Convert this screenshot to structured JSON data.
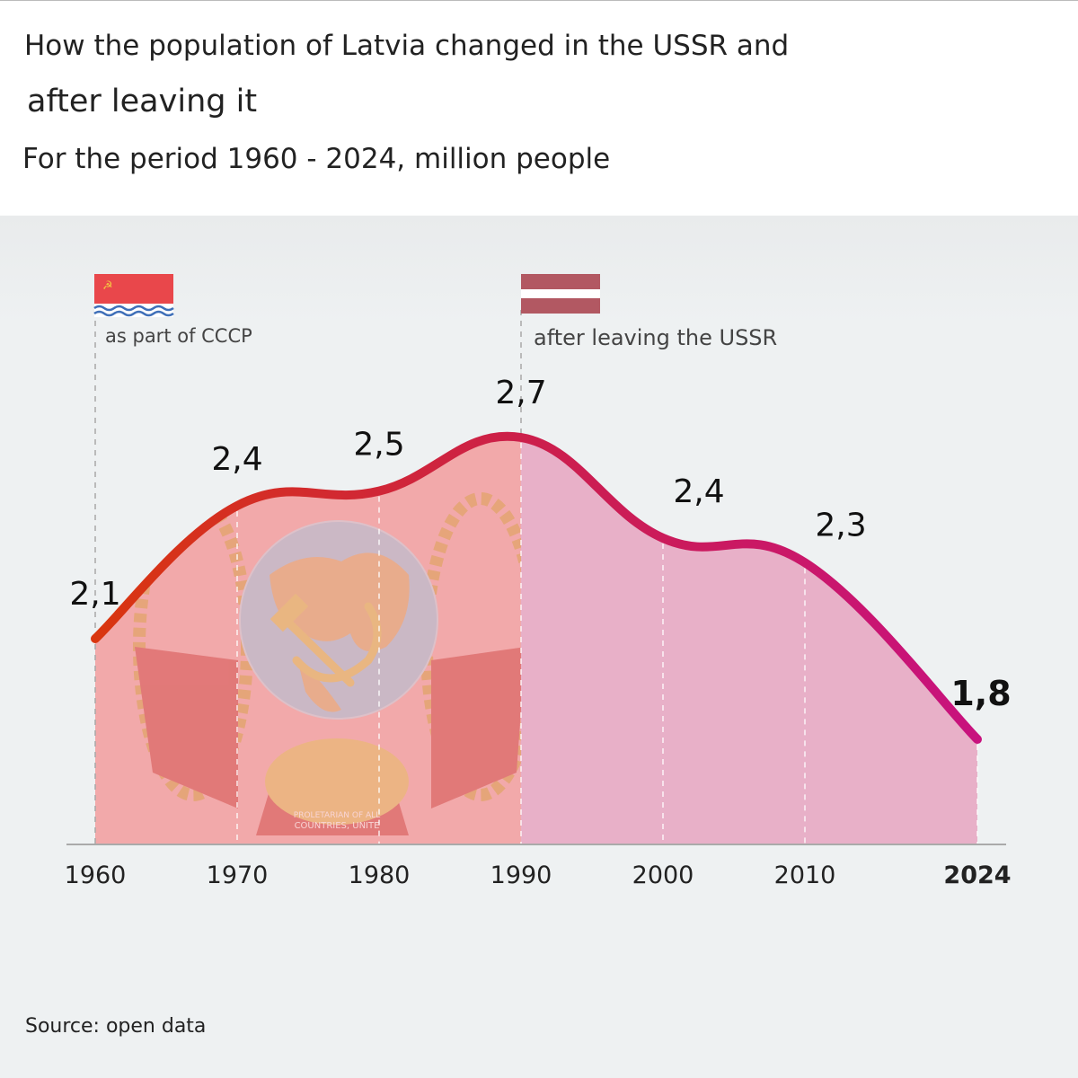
{
  "header": {
    "title_line1": "How the population of Latvia changed in the USSR and",
    "title_line2": "after leaving it",
    "subtitle": "For the period 1960 - 2024, million people"
  },
  "source": "Source: open data",
  "emblem": {
    "motto_line1": "PROLETARIAN OF ALL",
    "motto_line2": "COUNTRIES, UNITE"
  },
  "periods": [
    {
      "label": "as part of CCCP",
      "start": 1960,
      "flag": "latvian-ssr-flag-icon"
    },
    {
      "label": "after leaving the USSR",
      "start": 1990,
      "flag": "latvia-flag-icon"
    }
  ],
  "colors": {
    "line_start": "#d9360f",
    "line_mid": "#cc1f4a",
    "line_end": "#c8127e",
    "area_ussr": "#f2a9aa",
    "area_after": "#e8b0c8",
    "ssr_flag_red": "#e9474b",
    "ssr_flag_blue": "#3f6fb8",
    "latvia_flag_red": "#b25862"
  },
  "chart_data": {
    "type": "area",
    "x": [
      1960,
      1970,
      1980,
      1990,
      2000,
      2010,
      2024
    ],
    "series": [
      {
        "values": [
          2.1,
          2.4,
          2.5,
          2.7,
          2.4,
          2.3,
          1.8
        ]
      }
    ],
    "data_labels": [
      "2,1",
      "2,4",
      "2,5",
      "2,7",
      "2,4",
      "2,3",
      "1,8"
    ],
    "x_tick_labels": [
      "1960",
      "1970",
      "1980",
      "1990",
      "2000",
      "2010",
      "2024"
    ],
    "highlight_last": true,
    "grid": false,
    "legend": "none"
  }
}
